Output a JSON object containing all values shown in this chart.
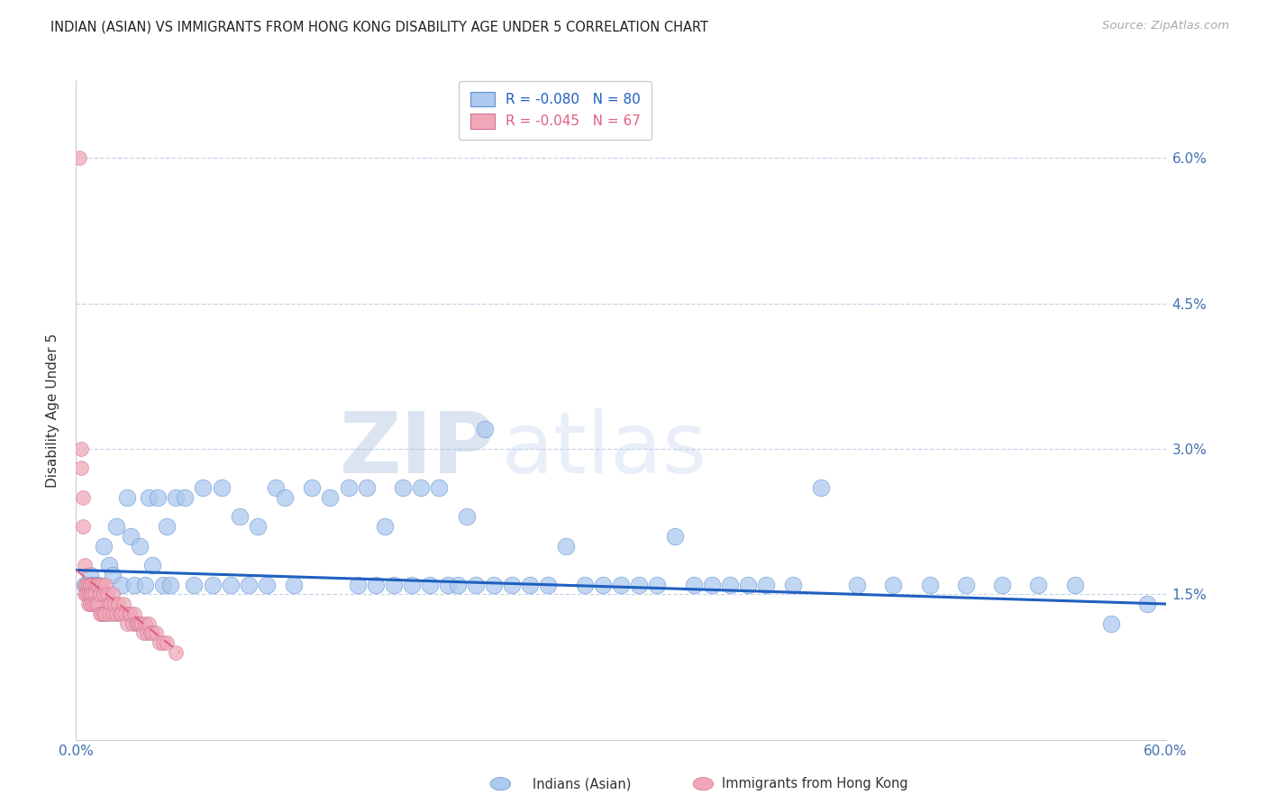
{
  "title": "INDIAN (ASIAN) VS IMMIGRANTS FROM HONG KONG DISABILITY AGE UNDER 5 CORRELATION CHART",
  "source": "Source: ZipAtlas.com",
  "ylabel": "Disability Age Under 5",
  "xlim": [
    0.0,
    0.6
  ],
  "ylim": [
    0.0,
    0.068
  ],
  "yticks": [
    0.015,
    0.03,
    0.045,
    0.06
  ],
  "ytick_labels": [
    "1.5%",
    "3.0%",
    "4.5%",
    "6.0%"
  ],
  "blue_R": -0.08,
  "blue_N": 80,
  "pink_R": -0.045,
  "pink_N": 67,
  "blue_color": "#adc9ee",
  "pink_color": "#f0a8b8",
  "blue_line_color": "#2060c0",
  "pink_line_color": "#e06080",
  "watermark_zip": "ZIP",
  "watermark_atlas": "atlas",
  "background_color": "#ffffff",
  "grid_color": "#c8d4e8",
  "blue_scatter_x": [
    0.005,
    0.008,
    0.012,
    0.015,
    0.018,
    0.02,
    0.022,
    0.025,
    0.028,
    0.03,
    0.032,
    0.035,
    0.038,
    0.04,
    0.042,
    0.045,
    0.048,
    0.05,
    0.052,
    0.055,
    0.06,
    0.065,
    0.07,
    0.075,
    0.08,
    0.085,
    0.09,
    0.095,
    0.1,
    0.105,
    0.11,
    0.115,
    0.12,
    0.13,
    0.14,
    0.15,
    0.155,
    0.16,
    0.165,
    0.17,
    0.175,
    0.18,
    0.185,
    0.19,
    0.195,
    0.2,
    0.205,
    0.21,
    0.215,
    0.22,
    0.225,
    0.23,
    0.24,
    0.25,
    0.26,
    0.27,
    0.28,
    0.29,
    0.3,
    0.31,
    0.32,
    0.33,
    0.34,
    0.35,
    0.36,
    0.37,
    0.38,
    0.395,
    0.41,
    0.43,
    0.45,
    0.47,
    0.49,
    0.51,
    0.53,
    0.55,
    0.57,
    0.59,
    0.008,
    0.01
  ],
  "blue_scatter_y": [
    0.016,
    0.017,
    0.016,
    0.02,
    0.018,
    0.017,
    0.022,
    0.016,
    0.025,
    0.021,
    0.016,
    0.02,
    0.016,
    0.025,
    0.018,
    0.025,
    0.016,
    0.022,
    0.016,
    0.025,
    0.025,
    0.016,
    0.026,
    0.016,
    0.026,
    0.016,
    0.023,
    0.016,
    0.022,
    0.016,
    0.026,
    0.025,
    0.016,
    0.026,
    0.025,
    0.026,
    0.016,
    0.026,
    0.016,
    0.022,
    0.016,
    0.026,
    0.016,
    0.026,
    0.016,
    0.026,
    0.016,
    0.016,
    0.023,
    0.016,
    0.032,
    0.016,
    0.016,
    0.016,
    0.016,
    0.02,
    0.016,
    0.016,
    0.016,
    0.016,
    0.016,
    0.021,
    0.016,
    0.016,
    0.016,
    0.016,
    0.016,
    0.016,
    0.026,
    0.016,
    0.016,
    0.016,
    0.016,
    0.016,
    0.016,
    0.016,
    0.012,
    0.014,
    0.016,
    0.016
  ],
  "pink_scatter_x": [
    0.002,
    0.003,
    0.003,
    0.004,
    0.004,
    0.005,
    0.005,
    0.005,
    0.006,
    0.006,
    0.007,
    0.007,
    0.007,
    0.008,
    0.008,
    0.008,
    0.009,
    0.009,
    0.009,
    0.01,
    0.01,
    0.01,
    0.011,
    0.011,
    0.012,
    0.012,
    0.013,
    0.013,
    0.014,
    0.014,
    0.015,
    0.015,
    0.016,
    0.016,
    0.017,
    0.018,
    0.018,
    0.019,
    0.02,
    0.02,
    0.021,
    0.022,
    0.023,
    0.024,
    0.025,
    0.026,
    0.027,
    0.028,
    0.029,
    0.03,
    0.031,
    0.032,
    0.033,
    0.034,
    0.035,
    0.036,
    0.037,
    0.038,
    0.039,
    0.04,
    0.041,
    0.042,
    0.044,
    0.046,
    0.048,
    0.05,
    0.055
  ],
  "pink_scatter_y": [
    0.06,
    0.03,
    0.028,
    0.025,
    0.022,
    0.018,
    0.016,
    0.015,
    0.016,
    0.015,
    0.016,
    0.015,
    0.014,
    0.016,
    0.015,
    0.014,
    0.016,
    0.015,
    0.014,
    0.016,
    0.015,
    0.014,
    0.016,
    0.014,
    0.016,
    0.014,
    0.015,
    0.013,
    0.016,
    0.013,
    0.015,
    0.013,
    0.016,
    0.013,
    0.015,
    0.014,
    0.013,
    0.014,
    0.015,
    0.013,
    0.014,
    0.013,
    0.014,
    0.013,
    0.013,
    0.014,
    0.013,
    0.012,
    0.013,
    0.013,
    0.012,
    0.013,
    0.012,
    0.012,
    0.012,
    0.012,
    0.011,
    0.012,
    0.011,
    0.012,
    0.011,
    0.011,
    0.011,
    0.01,
    0.01,
    0.01,
    0.009
  ],
  "blue_line_start_x": 0.0,
  "blue_line_end_x": 0.6,
  "blue_line_start_y": 0.0175,
  "blue_line_end_y": 0.014,
  "pink_line_start_x": 0.0,
  "pink_line_end_x": 0.057,
  "pink_line_start_y": 0.0175,
  "pink_line_end_y": 0.009
}
